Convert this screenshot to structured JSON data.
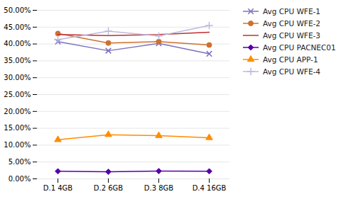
{
  "chart_data": {
    "type": "line",
    "categories": [
      "D.1 4GB",
      "D.2 6GB",
      "D.3 8GB",
      "D.4 16GB"
    ],
    "series": [
      {
        "name": "Avg CPU WFE-1",
        "color": "#7B72BE",
        "marker": "x",
        "values": [
          0.407,
          0.38,
          0.402,
          0.371
        ]
      },
      {
        "name": "Avg CPU WFE-2",
        "color": "#D07030",
        "marker": "circle",
        "values": [
          0.431,
          0.403,
          0.407,
          0.397
        ]
      },
      {
        "name": "Avg CPU WFE-3",
        "color": "#C03030",
        "marker": "none",
        "values": [
          0.428,
          0.425,
          0.428,
          0.435
        ]
      },
      {
        "name": "Avg CPU PACNEC01",
        "color": "#5500AA",
        "marker": "diamond",
        "values": [
          0.0225,
          0.021,
          0.023,
          0.0225
        ]
      },
      {
        "name": "Avg CPU APP-1",
        "color": "#FF8C00",
        "marker": "triangle",
        "values": [
          0.116,
          0.131,
          0.128,
          0.122
        ]
      },
      {
        "name": "Avg CPU WFE-4",
        "color": "#BBBBDD",
        "marker": "plus",
        "values": [
          0.413,
          0.438,
          0.424,
          0.455
        ]
      }
    ],
    "ylim": [
      0.0,
      0.5
    ],
    "yticks": [
      {
        "value": 0.0,
        "label": "0.00%"
      },
      {
        "value": 0.05,
        "label": "5.00%"
      },
      {
        "value": 0.1,
        "label": "10.00%"
      },
      {
        "value": 0.15,
        "label": "15.00%"
      },
      {
        "value": 0.2,
        "label": "20.00%"
      },
      {
        "value": 0.25,
        "label": "25.00%"
      },
      {
        "value": 0.3,
        "label": "30.00%"
      },
      {
        "value": 0.35,
        "label": "35.00%"
      },
      {
        "value": 0.4,
        "label": "40.00%"
      },
      {
        "value": 0.45,
        "label": "45.00%"
      },
      {
        "value": 0.5,
        "label": "50.00%"
      }
    ],
    "grid": true,
    "legend": "upper right"
  }
}
